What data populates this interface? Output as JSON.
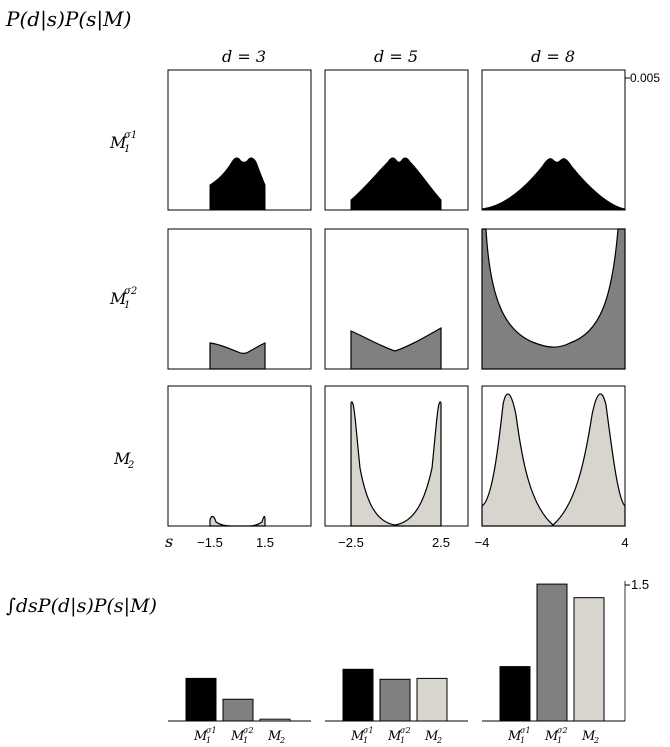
{
  "title_top": "P(d|s)P(s|M)",
  "title_bottom": "∫dsP(d|s)P(s|M)",
  "chart_data": {
    "type": "area",
    "columns": [
      {
        "label": "d = 3"
      },
      {
        "label": "d = 5"
      },
      {
        "label": "d = 8"
      }
    ],
    "rows": [
      {
        "label_base": "M",
        "label_sub": "1",
        "label_sup": "σ1",
        "fill": "#000000"
      },
      {
        "label_base": "M",
        "label_sub": "1",
        "label_sup": "σ2",
        "fill": "#808080"
      },
      {
        "label_base": "M",
        "label_sub": "2",
        "label_sup": "",
        "fill": "#d8d4ce"
      }
    ],
    "y_tick_top": "0.005",
    "x_axis_symbol": "s",
    "x_ticks": [
      [
        "−1.5",
        "1.5"
      ],
      [
        "−2.5",
        "2.5"
      ],
      [
        "−4",
        "4"
      ]
    ],
    "bar_chart": {
      "type": "bar",
      "y_tick": "1.5",
      "y_tick_value": 1.5,
      "ylim": [
        0,
        1.5
      ],
      "categories": [
        {
          "base": "M",
          "sub": "1",
          "sup": "σ1"
        },
        {
          "base": "M",
          "sub": "1",
          "sup": "σ2"
        },
        {
          "base": "M",
          "sub": "2",
          "sup": ""
        }
      ],
      "colors": [
        "#000000",
        "#808080",
        "#d8d4ce"
      ],
      "groups": [
        {
          "d": "3",
          "values": [
            0.47,
            0.24,
            0.02
          ]
        },
        {
          "d": "5",
          "values": [
            0.57,
            0.46,
            0.47
          ]
        },
        {
          "d": "8",
          "values": [
            0.6,
            1.51,
            1.36
          ]
        }
      ]
    }
  }
}
